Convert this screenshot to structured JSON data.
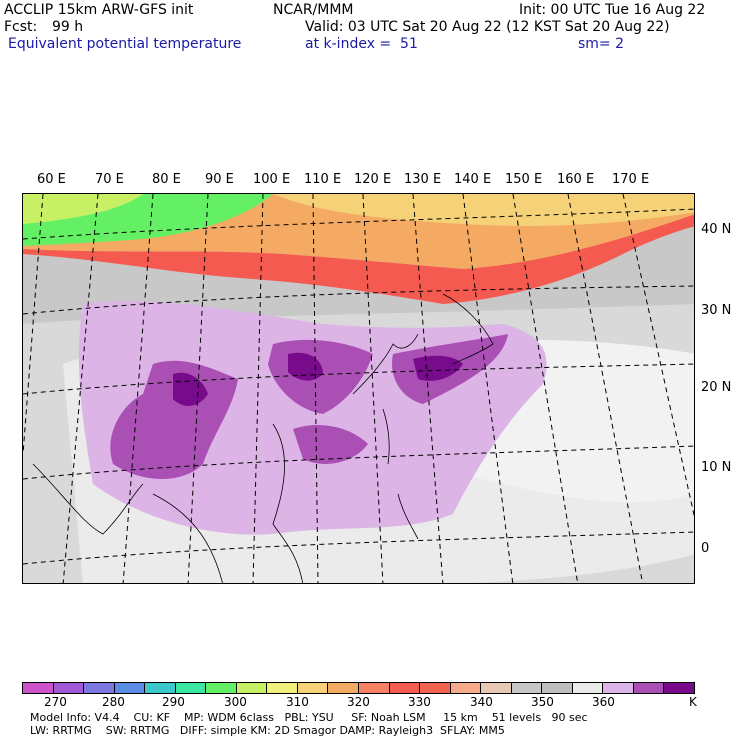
{
  "header": {
    "line1_left": "ACCLIP 15km ARW-GFS init",
    "line1_mid": "NCAR/MMM",
    "line1_right": "Init: 00 UTC Tue 16 Aug 22",
    "fcst_label": "Fcst:",
    "fcst_value": "99 h",
    "valid": "Valid: 03 UTC Sat 20 Aug 22 (12 KST Sat 20 Aug 22)",
    "field": "Equivalent potential temperature",
    "level": "at k-index =  51",
    "sm": "sm= 2"
  },
  "map": {
    "lon_labels": [
      "60 E",
      "70 E",
      "80 E",
      "90 E",
      "100 E",
      "110 E",
      "120 E",
      "130 E",
      "140 E",
      "150 E",
      "160 E",
      "170 E"
    ],
    "lat_labels": [
      "40 N",
      "30 N",
      "20 N",
      "10 N",
      "0"
    ]
  },
  "colorbar": {
    "colors": [
      "#cc55cc",
      "#a05ad6",
      "#7d78e0",
      "#5a8ce6",
      "#3cc8c8",
      "#3ce6a0",
      "#64f064",
      "#c8f064",
      "#f0f07d",
      "#f5d278",
      "#f5aa64",
      "#f58264",
      "#f55a50",
      "#f06450",
      "#f5aa8c",
      "#e6c8b4",
      "#c8c8c8",
      "#bebebe",
      "#ebebeb",
      "#dcb4e6",
      "#aa50b4",
      "#780a8c"
    ],
    "labels": [
      "270",
      "280",
      "290",
      "300",
      "310",
      "320",
      "330",
      "340",
      "350",
      "360"
    ],
    "unit": "K"
  },
  "footer": {
    "line1": "Model Info: V4.4    CU: KF    MP: WDM 6class   PBL: YSU     SF: Noah LSM     15 km    51 levels   90 sec",
    "line2": "LW: RRTMG    SW: RRTMG   DIFF: simple KM: 2D Smagor DAMP: Rayleigh3  SFLAY: MM5"
  }
}
